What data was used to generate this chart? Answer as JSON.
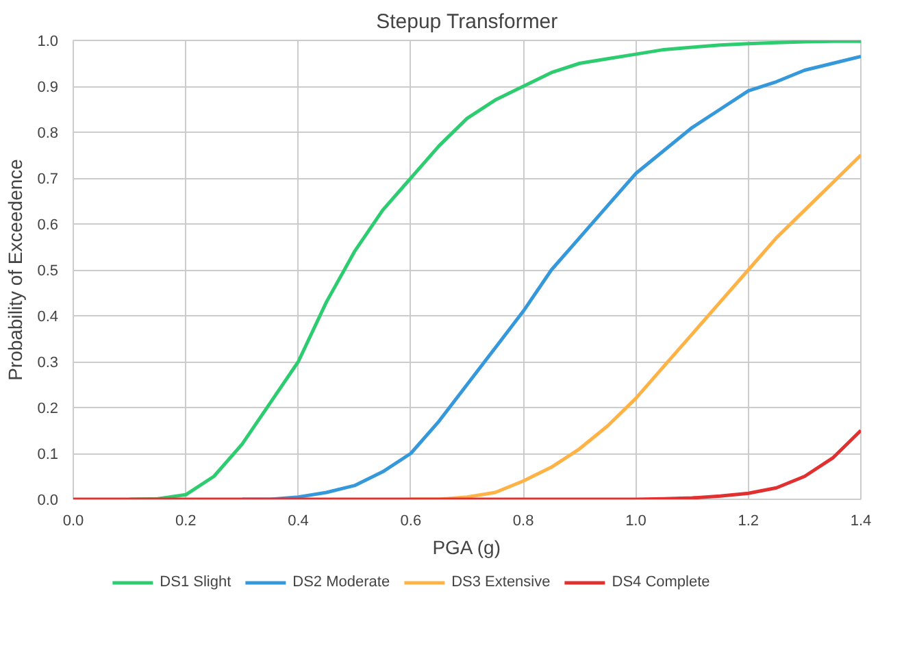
{
  "chart_data": {
    "type": "line",
    "title": "Stepup Transformer",
    "xlabel": "PGA (g)",
    "ylabel": "Probability of Exceedence",
    "x": [
      0,
      0.05,
      0.1,
      0.15,
      0.2,
      0.25,
      0.3,
      0.35,
      0.4,
      0.45,
      0.5,
      0.55,
      0.6,
      0.65,
      0.7,
      0.75,
      0.8,
      0.85,
      0.9,
      0.95,
      1.0,
      1.05,
      1.1,
      1.15,
      1.2,
      1.25,
      1.3,
      1.35,
      1.4
    ],
    "series": [
      {
        "name": "DS1 Slight",
        "color": "#2ecc71",
        "values": [
          null,
          null,
          0,
          0.001,
          0.01,
          0.05,
          0.12,
          0.21,
          0.3,
          0.43,
          0.54,
          0.63,
          0.7,
          0.77,
          0.83,
          0.87,
          0.9,
          0.93,
          0.95,
          0.96,
          0.97,
          0.98,
          0.985,
          0.99,
          0.993,
          0.995,
          0.997,
          0.998,
          0.998
        ]
      },
      {
        "name": "DS2 Moderate",
        "color": "#3498db",
        "values": [
          null,
          null,
          null,
          null,
          null,
          null,
          0,
          0,
          0.005,
          0.015,
          0.03,
          0.06,
          0.1,
          0.17,
          0.25,
          0.33,
          0.41,
          0.5,
          0.57,
          0.64,
          0.71,
          0.76,
          0.81,
          0.85,
          0.89,
          0.91,
          0.935,
          0.95,
          0.965
        ]
      },
      {
        "name": "DS3 Extensive",
        "color": "#ffb347",
        "values": [
          null,
          null,
          null,
          null,
          null,
          null,
          null,
          null,
          null,
          null,
          null,
          null,
          0,
          0,
          0.005,
          0.015,
          0.04,
          0.07,
          0.11,
          0.16,
          0.22,
          0.29,
          0.36,
          0.43,
          0.5,
          0.57,
          0.63,
          0.69,
          0.75
        ]
      },
      {
        "name": "DS4 Complete",
        "color": "#e03030",
        "values": [
          0,
          0,
          0,
          0,
          0,
          0,
          0,
          0,
          0,
          0,
          0,
          0,
          0,
          0,
          0,
          0,
          0,
          0,
          0,
          0,
          0,
          0.001,
          0.003,
          0.007,
          0.013,
          0.025,
          0.05,
          0.09,
          0.15
        ]
      }
    ],
    "xlim": [
      0,
      1.4
    ],
    "ylim": [
      0,
      1
    ],
    "xticks": [
      {
        "value": 0,
        "label": "0.0"
      },
      0.2,
      0.4,
      0.6,
      0.8,
      {
        "value": 1,
        "label": "1.0"
      },
      1.2,
      1.4
    ],
    "yticks": [
      {
        "value": 0,
        "label": "0.0"
      },
      0.1,
      0.2,
      0.3,
      0.4,
      0.5,
      0.6,
      0.7,
      0.8,
      0.9,
      {
        "value": 1,
        "label": "1.0"
      }
    ],
    "grid": true,
    "legend": "bottom",
    "marker": "none",
    "line_style": "solid"
  }
}
